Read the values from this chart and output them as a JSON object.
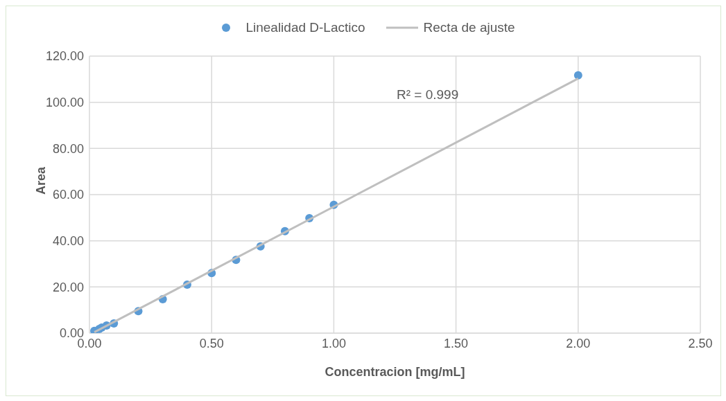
{
  "chart_data": {
    "type": "scatter",
    "xlabel": "Concentracion [mg/mL]",
    "ylabel": "Area",
    "xlim": [
      0,
      2.5
    ],
    "xticks": [
      {
        "value": 0,
        "label": "0.00"
      },
      {
        "value": 0.5,
        "label": "0.50"
      },
      {
        "value": 1,
        "label": "1.00"
      },
      {
        "value": 1.5,
        "label": "1.50"
      },
      {
        "value": 2,
        "label": "2.00"
      },
      {
        "value": 2.5,
        "label": "2.50"
      }
    ],
    "ylim": [
      0,
      120
    ],
    "yticks": [
      {
        "value": 0,
        "label": "0.00"
      },
      {
        "value": 20,
        "label": "20.00"
      },
      {
        "value": 40,
        "label": "40.00"
      },
      {
        "value": 60,
        "label": "60.00"
      },
      {
        "value": 80,
        "label": "80.00"
      },
      {
        "value": 100,
        "label": "100.00"
      },
      {
        "value": 120,
        "label": "120.00"
      }
    ],
    "grid": true,
    "legend": "top",
    "annotations": [
      "R² = 0.999"
    ],
    "series": [
      {
        "name": "Linealidad D-Lactico",
        "marker": "circle",
        "color": "#5b9bd5",
        "x": [
          0.02,
          0.04,
          0.05,
          0.07,
          0.1,
          0.2,
          0.3,
          0.4,
          0.5,
          0.6,
          0.7,
          0.8,
          0.9,
          1.0,
          2.0
        ],
        "values": [
          1.0,
          1.8,
          2.4,
          3.3,
          4.2,
          9.5,
          14.7,
          21.0,
          26.0,
          31.7,
          37.6,
          44.2,
          49.8,
          55.6,
          111.7
        ]
      },
      {
        "name": "Recta  de ajuste",
        "type": "line",
        "color": "#bfbfbf",
        "line_style": "solid",
        "x": [
          0.02,
          2.0
        ],
        "values": [
          0.4,
          110.3
        ]
      }
    ]
  }
}
